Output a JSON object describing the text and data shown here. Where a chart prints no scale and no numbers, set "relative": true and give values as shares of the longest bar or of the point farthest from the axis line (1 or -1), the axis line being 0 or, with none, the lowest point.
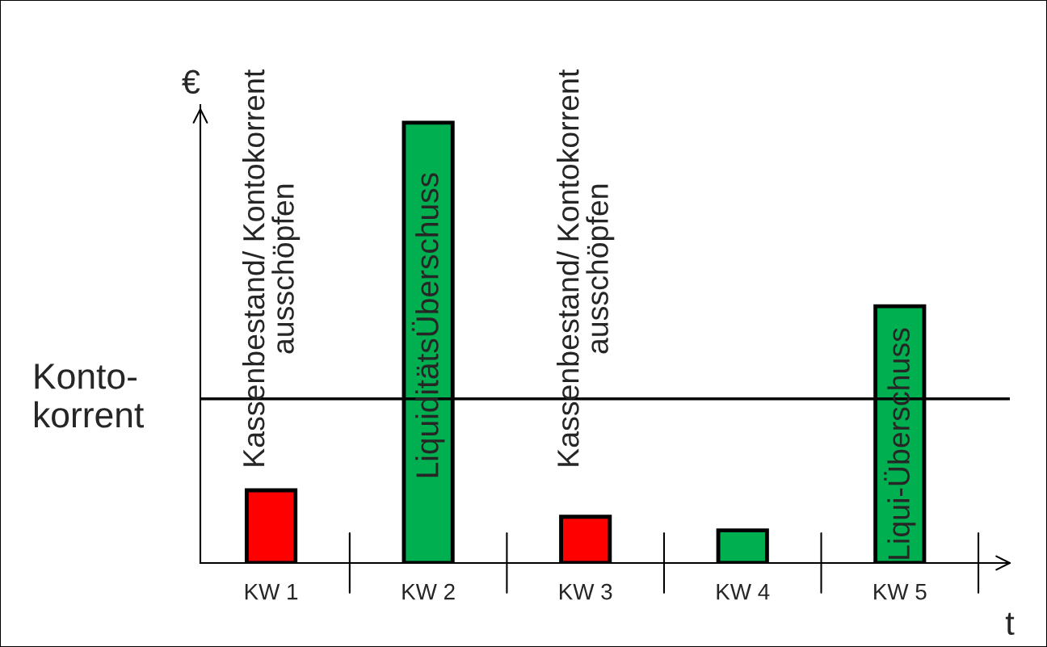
{
  "chart_data": {
    "type": "bar",
    "relative": true,
    "ylabel": "€",
    "xlabel": "t",
    "categories": [
      "KW 1",
      "KW 2",
      "KW 3",
      "KW 4",
      "KW 5"
    ],
    "values": [
      0.165,
      1,
      0.105,
      0.074,
      0.583
    ],
    "colors": [
      "#ff0000",
      "#00b050",
      "#ff0000",
      "#00b050",
      "#00b050"
    ],
    "ref_lines": [
      {
        "axis": "y",
        "value": 0.373,
        "label": "Konto-\nkorrent",
        "color": "#000000",
        "line_style": "solid"
      }
    ],
    "annotations": [
      "Kassenbestand/ Kontokorrent\nausschöpfen",
      "LiquiditätsÜberschuss",
      "Kassenbestand/ Kontokorrent\nausschöpfen",
      "Liqui-Überschuss"
    ],
    "grid": false,
    "legend": false
  }
}
